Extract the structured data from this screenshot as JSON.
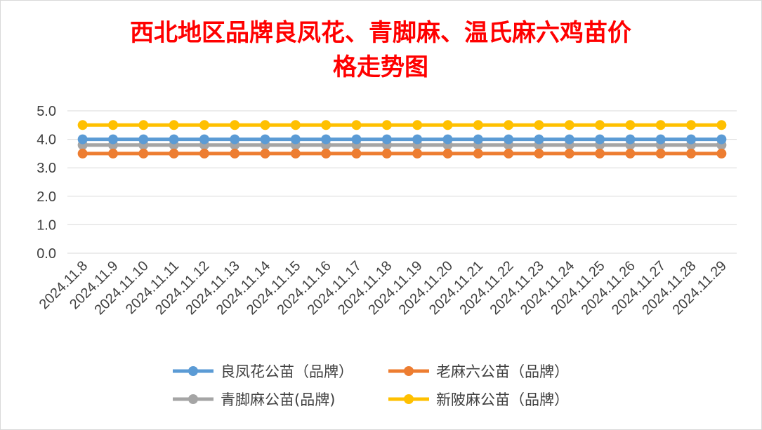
{
  "chart_data": {
    "type": "line",
    "title": "西北地区品牌良凤花、青脚麻、温氏麻六鸡苗价格走势图",
    "title_lines": [
      "西北地区品牌良凤花、青脚麻、温氏麻六鸡苗价",
      "格走势图"
    ],
    "categories": [
      "2024.11.8",
      "2024.11.9",
      "2024.11.10",
      "2024.11.11",
      "2024.11.12",
      "2024.11.13",
      "2024.11.14",
      "2024.11.15",
      "2024.11.16",
      "2024.11.17",
      "2024.11.18",
      "2024.11.19",
      "2024.11.20",
      "2024.11.21",
      "2024.11.22",
      "2024.11.23",
      "2024.11.24",
      "2024.11.25",
      "2024.11.26",
      "2024.11.27",
      "2024.11.28",
      "2024.11.29"
    ],
    "y_ticks": [
      "0.0",
      "1.0",
      "2.0",
      "3.0",
      "4.0",
      "5.0"
    ],
    "ylim": [
      0,
      5
    ],
    "grid": true,
    "legend_position": "bottom",
    "series": [
      {
        "name": "良凤花公苗（品牌）",
        "color": "#5b9bd5",
        "values": [
          4.0,
          4.0,
          4.0,
          4.0,
          4.0,
          4.0,
          4.0,
          4.0,
          4.0,
          4.0,
          4.0,
          4.0,
          4.0,
          4.0,
          4.0,
          4.0,
          4.0,
          4.0,
          4.0,
          4.0,
          4.0,
          4.0
        ]
      },
      {
        "name": "老麻六公苗（品牌）",
        "color": "#ed7d31",
        "values": [
          3.5,
          3.5,
          3.5,
          3.5,
          3.5,
          3.5,
          3.5,
          3.5,
          3.5,
          3.5,
          3.5,
          3.5,
          3.5,
          3.5,
          3.5,
          3.5,
          3.5,
          3.5,
          3.5,
          3.5,
          3.5,
          3.5
        ]
      },
      {
        "name": "青脚麻公苗(品牌)",
        "color": "#a5a5a5",
        "values": [
          3.8,
          3.8,
          3.8,
          3.8,
          3.8,
          3.8,
          3.8,
          3.8,
          3.8,
          3.8,
          3.8,
          3.8,
          3.8,
          3.8,
          3.8,
          3.8,
          3.8,
          3.8,
          3.8,
          3.8,
          3.8,
          3.8
        ]
      },
      {
        "name": "新陂麻公苗（品牌）",
        "color": "#ffc000",
        "values": [
          4.5,
          4.5,
          4.5,
          4.5,
          4.5,
          4.5,
          4.5,
          4.5,
          4.5,
          4.5,
          4.5,
          4.5,
          4.5,
          4.5,
          4.5,
          4.5,
          4.5,
          4.5,
          4.5,
          4.5,
          4.5,
          4.5
        ]
      }
    ],
    "draw_order": [
      2,
      1,
      0,
      3
    ]
  }
}
